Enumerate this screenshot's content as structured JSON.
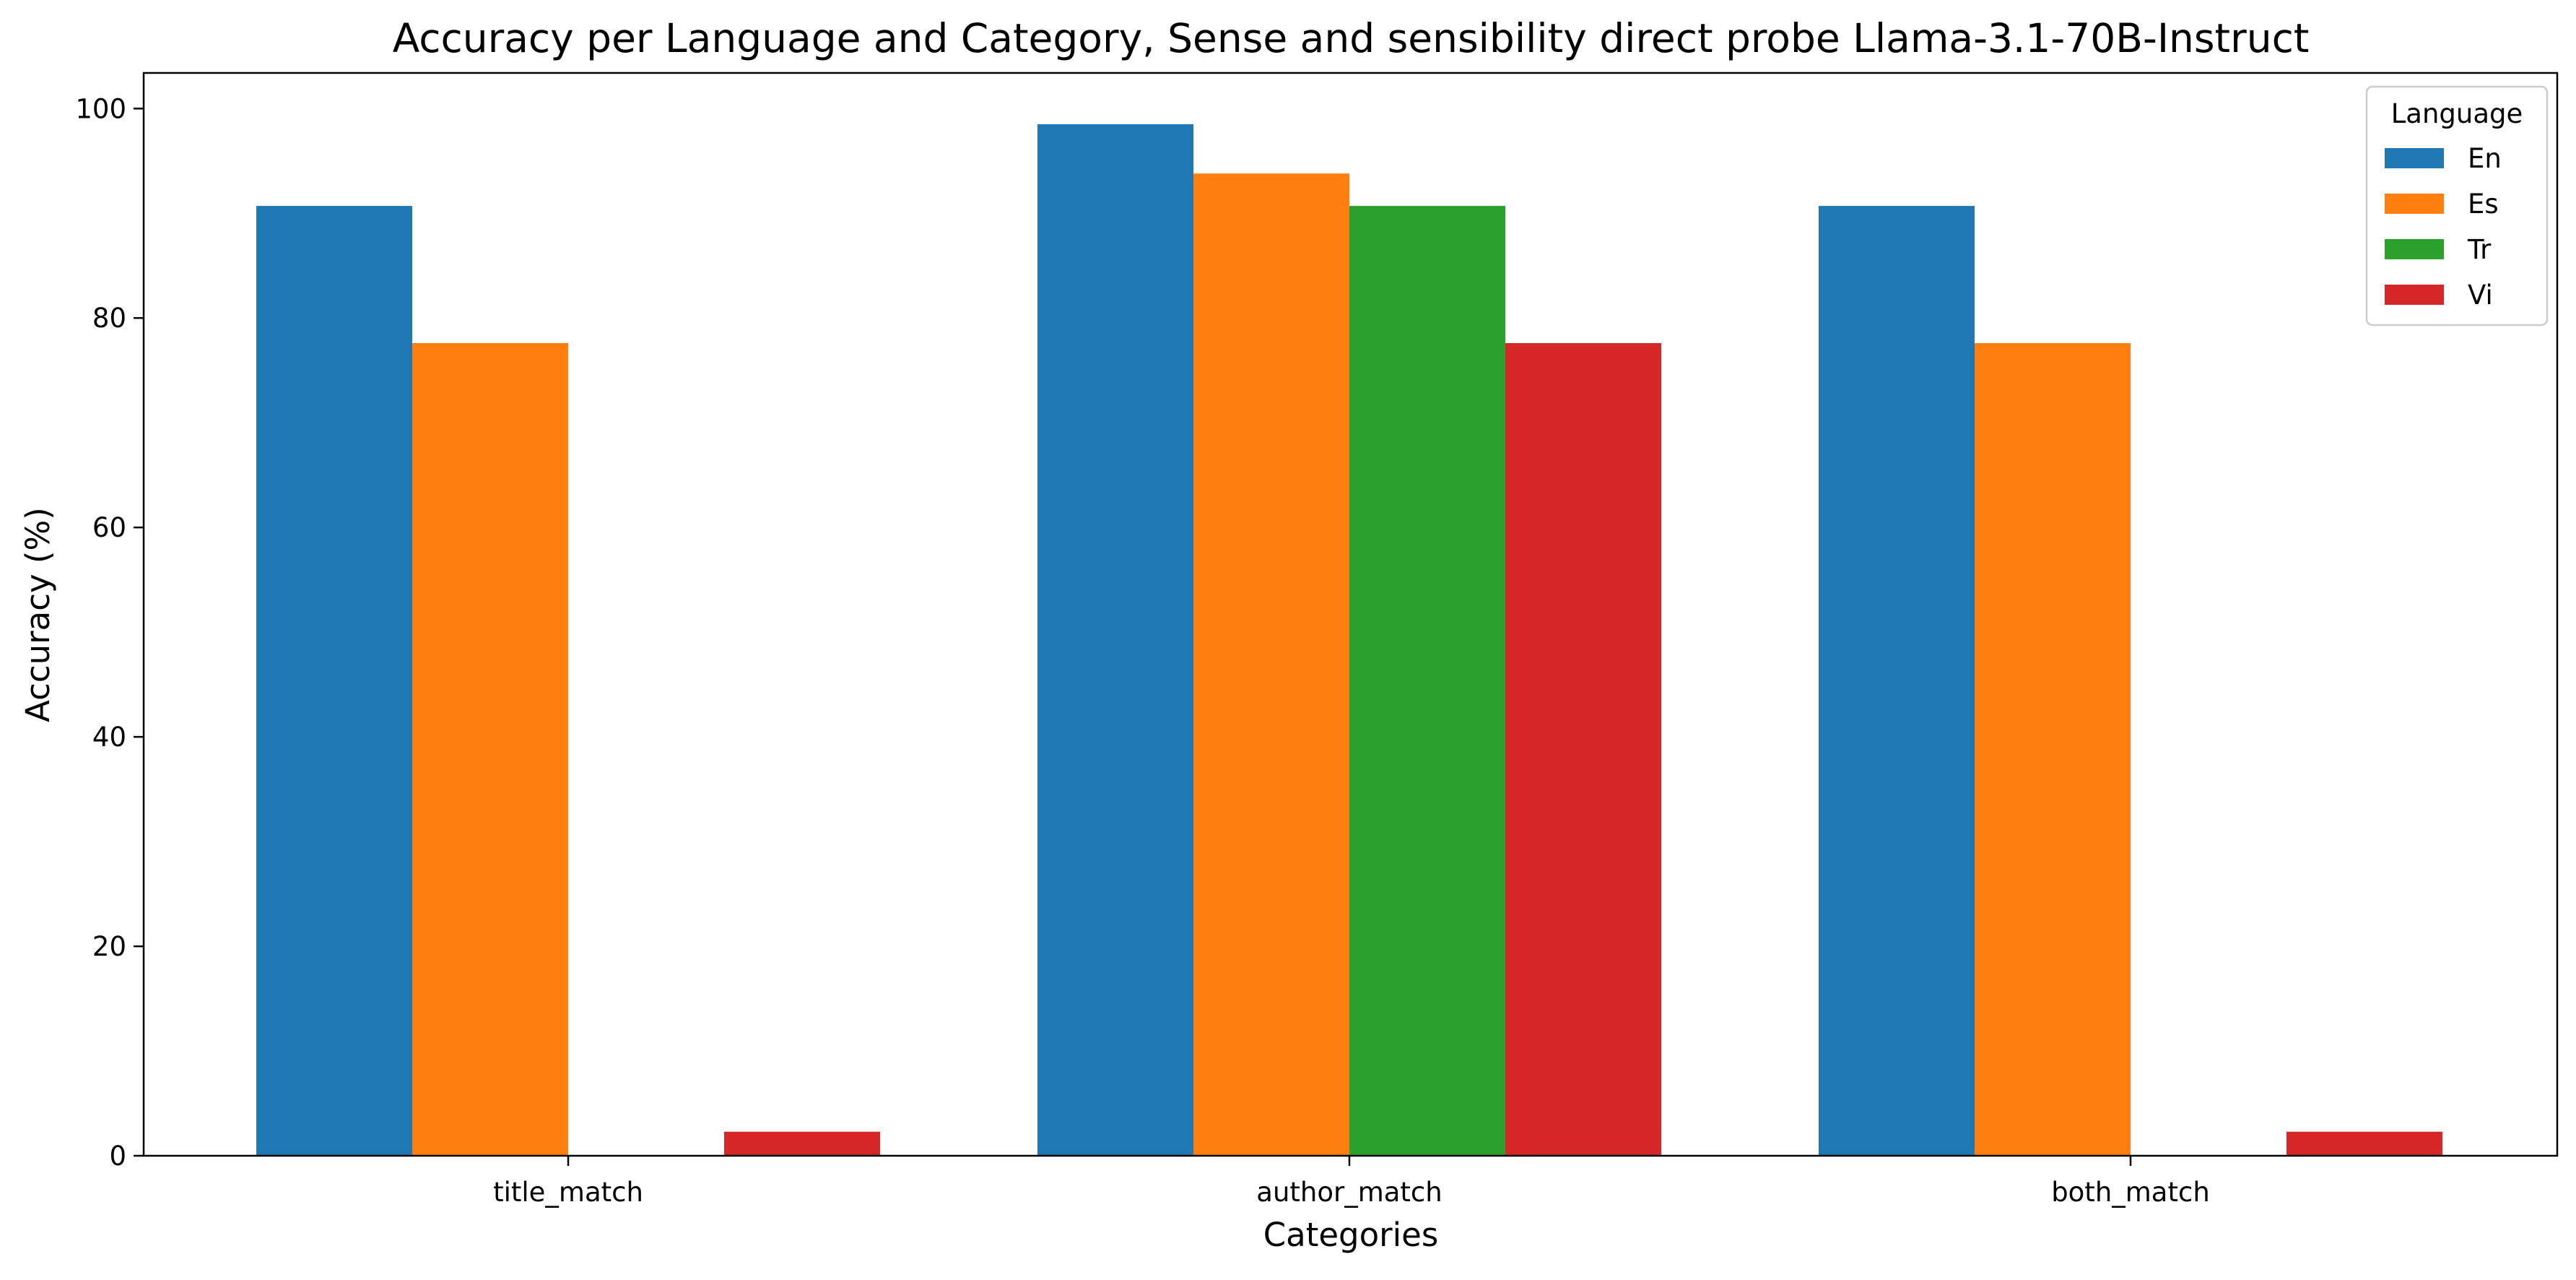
{
  "chart_data": {
    "type": "bar",
    "title": "Accuracy per Language and Category, Sense and sensibility direct probe Llama-3.1-70B-Instruct",
    "xlabel": "Categories",
    "ylabel": "Accuracy (%)",
    "categories": [
      "title_match",
      "author_match",
      "both_match"
    ],
    "series": [
      {
        "name": "En",
        "color": "#1f77b4",
        "values": [
          90.7,
          98.5,
          90.7
        ]
      },
      {
        "name": "Es",
        "color": "#ff7f0e",
        "values": [
          77.6,
          93.8,
          77.6
        ]
      },
      {
        "name": "Tr",
        "color": "#2ca02c",
        "values": [
          0,
          90.7,
          0
        ]
      },
      {
        "name": "Vi",
        "color": "#d62728",
        "values": [
          2.3,
          77.6,
          2.3
        ]
      }
    ],
    "ylim": [
      0,
      103.4
    ],
    "yticks": [
      0,
      20,
      40,
      60,
      80,
      100
    ],
    "grid": false,
    "legend": {
      "title": "Language",
      "placement": "top-right"
    }
  }
}
